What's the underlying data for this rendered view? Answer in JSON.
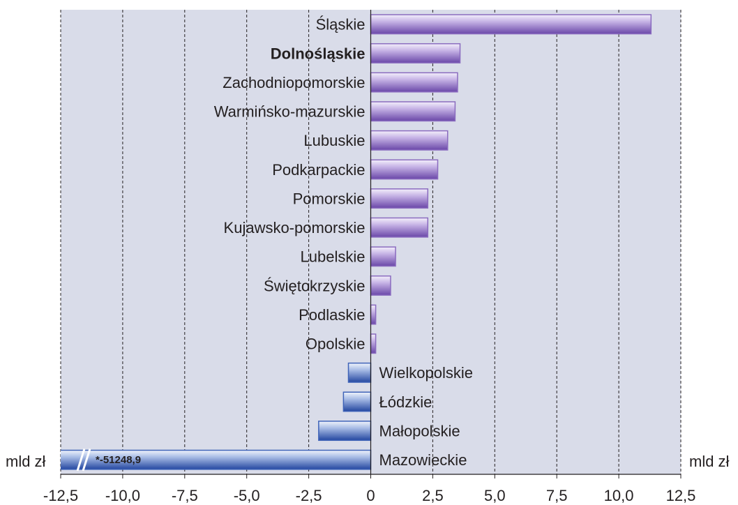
{
  "chart_data": {
    "type": "hbar",
    "categories": [
      "Śląskie",
      "Dolnośląskie",
      "Zachodniopomorskie",
      "Warmińsko-mazurskie",
      "Lubuskie",
      "Podkarpackie",
      "Pomorskie",
      "Kujawsko-pomorskie",
      "Lubelskie",
      "Świętokrzyskie",
      "Podlaskie",
      "Opolskie",
      "Wielkopolskie",
      "Łódzkie",
      "Małopolskie",
      "Mazowieckie"
    ],
    "values": [
      11.3,
      3.6,
      3.5,
      3.4,
      3.1,
      2.7,
      2.3,
      2.3,
      1.0,
      0.8,
      0.2,
      0.2,
      -0.9,
      -1.1,
      -2.1,
      -51248.9
    ],
    "value_labels": [
      null,
      null,
      null,
      null,
      null,
      null,
      null,
      null,
      null,
      null,
      null,
      null,
      null,
      null,
      null,
      "*-51248,9"
    ],
    "highlight": 1,
    "positive_color": "#8a6bbf",
    "negative_color": "#3f63b8",
    "background": "#d9dce9",
    "unit_label": "mld zł",
    "xlim": [
      -12.5,
      12.5
    ],
    "xticks": [
      {
        "value": -12.5,
        "label": "-12,5"
      },
      {
        "value": -10,
        "label": "-10,0"
      },
      {
        "value": -7.5,
        "label": "-7,5"
      },
      {
        "value": -5,
        "label": "-5,0"
      },
      {
        "value": -2.5,
        "label": "-2,5"
      },
      0,
      {
        "value": 2.5,
        "label": "2,5"
      },
      {
        "value": 5,
        "label": "5,0"
      },
      {
        "value": 7.5,
        "label": "7,5"
      },
      {
        "value": 10,
        "label": "10,0"
      },
      {
        "value": 12.5,
        "label": "12,5"
      }
    ],
    "grid": true
  }
}
